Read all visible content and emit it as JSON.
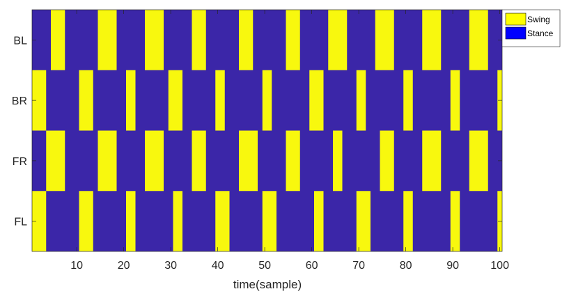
{
  "chart_data": {
    "type": "heatmap",
    "title": "",
    "xlabel": "time(sample)",
    "ylabel": "",
    "xlim": [
      0.5,
      100.5
    ],
    "x_ticks": [
      10,
      20,
      30,
      40,
      50,
      60,
      70,
      80,
      90,
      100
    ],
    "x_tick_labels": [
      "10",
      "20",
      "30",
      "40",
      "50",
      "60",
      "70",
      "80",
      "90",
      "100"
    ],
    "rows": [
      "BL",
      "BR",
      "FR",
      "FL"
    ],
    "grid": false,
    "legend_placement": "top-right",
    "legend": [
      {
        "label": "Swing",
        "color": "#FFFF00"
      },
      {
        "label": "Stance",
        "color": "#0000FF"
      }
    ],
    "stance_fill_color": "#3B26A8",
    "swing_color": "#F8F80E",
    "swing_intervals": {
      "BL": [
        [
          5,
          7
        ],
        [
          15,
          18
        ],
        [
          25,
          28
        ],
        [
          35,
          37
        ],
        [
          45,
          47
        ],
        [
          55,
          57
        ],
        [
          64,
          67
        ],
        [
          74,
          77
        ],
        [
          84,
          87
        ],
        [
          94,
          97
        ]
      ],
      "BR": [
        [
          1,
          3
        ],
        [
          11,
          13
        ],
        [
          21,
          22
        ],
        [
          30,
          32
        ],
        [
          40,
          41
        ],
        [
          50,
          51
        ],
        [
          60,
          62
        ],
        [
          70,
          71
        ],
        [
          80,
          81
        ],
        [
          90,
          91
        ],
        [
          100,
          100
        ]
      ],
      "FR": [
        [
          4,
          7
        ],
        [
          15,
          18
        ],
        [
          25,
          28
        ],
        [
          35,
          37
        ],
        [
          45,
          48
        ],
        [
          55,
          57
        ],
        [
          65,
          66
        ],
        [
          75,
          77
        ],
        [
          84,
          87
        ],
        [
          94,
          97
        ]
      ],
      "FL": [
        [
          1,
          3
        ],
        [
          11,
          13
        ],
        [
          21,
          22
        ],
        [
          31,
          32
        ],
        [
          40,
          42
        ],
        [
          50,
          52
        ],
        [
          61,
          62
        ],
        [
          70,
          72
        ],
        [
          80,
          81
        ],
        [
          90,
          91
        ],
        [
          100,
          100
        ]
      ]
    }
  }
}
